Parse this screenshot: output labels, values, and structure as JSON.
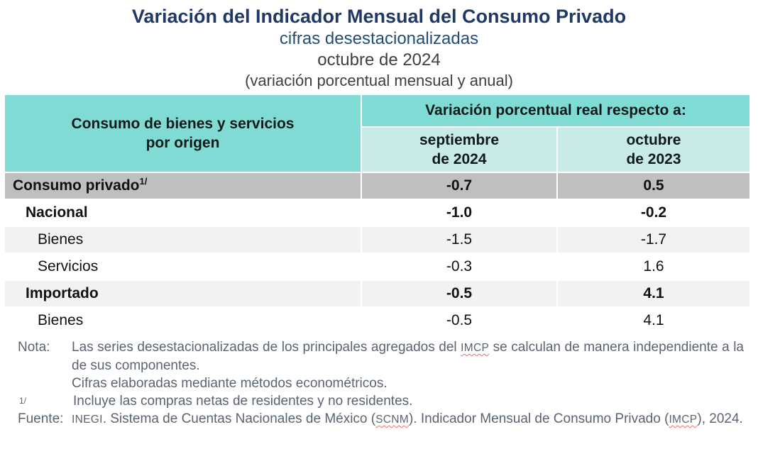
{
  "header": {
    "title": "Variación del Indicador Mensual del Consumo Privado",
    "subtitle_series": "cifras desestacionalizadas",
    "subtitle_period": "octubre de 2024",
    "subtitle_units": "(variación porcentual mensual y anual)"
  },
  "table": {
    "origin_header_line1": "Consumo de bienes y servicios",
    "origin_header_line2": "por origen",
    "group_header": "Variación porcentual real respecto a:",
    "col_sep_line1": "septiembre",
    "col_sep_line2": "de 2024",
    "col_oct_line1": "octubre",
    "col_oct_line2": "de 2023",
    "rows": [
      {
        "label": "Consumo privado",
        "sup": "1/",
        "values": [
          "-0.7",
          "0.5"
        ]
      },
      {
        "label": "Nacional",
        "values": [
          "-1.0",
          "-0.2"
        ]
      },
      {
        "label": "Bienes",
        "values": [
          "-1.5",
          "-1.7"
        ]
      },
      {
        "label": "Servicios",
        "values": [
          "-0.3",
          "1.6"
        ]
      },
      {
        "label": "Importado",
        "values": [
          "-0.5",
          "4.1"
        ]
      },
      {
        "label": "Bienes",
        "values": [
          "-0.5",
          "4.1"
        ]
      }
    ]
  },
  "notes": {
    "nota": {
      "label": "Nota:",
      "part1": "Las series desestacionalizadas de los principales agregados del ",
      "imcp": "IMCP",
      "part2": " se calculan de manera independiente a la de sus componentes.",
      "line2": "Cifras elaboradas mediante métodos econométricos."
    },
    "footnote1": {
      "marker": "1/",
      "text": "Incluye las compras netas de residentes y no residentes."
    },
    "fuente": {
      "label": "Fuente:",
      "inegi": "INEGI",
      "part1": ". Sistema de Cuentas Nacionales de México (",
      "scnm": "SCNM",
      "part2": "). Indicador Mensual de Consumo Privado (",
      "imcp": "IMCP",
      "part3": "), 2024."
    }
  },
  "colors": {
    "header_teal": "#80DBD5",
    "subheader_teal": "#C8EBE8",
    "total_row_gray": "#BFBFBF",
    "alt_row_gray": "#F2F2F2",
    "title_navy": "#1F3864",
    "subtitle_navy": "#1F4E79",
    "note_slate": "#5A6470",
    "spellcheck_red": "#F06A6A"
  }
}
